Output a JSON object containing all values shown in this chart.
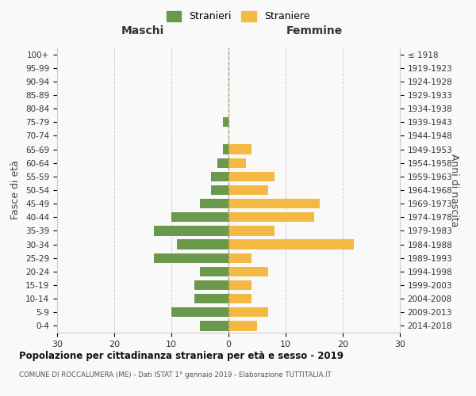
{
  "age_groups": [
    "0-4",
    "5-9",
    "10-14",
    "15-19",
    "20-24",
    "25-29",
    "30-34",
    "35-39",
    "40-44",
    "45-49",
    "50-54",
    "55-59",
    "60-64",
    "65-69",
    "70-74",
    "75-79",
    "80-84",
    "85-89",
    "90-94",
    "95-99",
    "100+"
  ],
  "birth_years": [
    "2014-2018",
    "2009-2013",
    "2004-2008",
    "1999-2003",
    "1994-1998",
    "1989-1993",
    "1984-1988",
    "1979-1983",
    "1974-1978",
    "1969-1973",
    "1964-1968",
    "1959-1963",
    "1954-1958",
    "1949-1953",
    "1944-1948",
    "1939-1943",
    "1934-1938",
    "1929-1933",
    "1924-1928",
    "1919-1923",
    "≤ 1918"
  ],
  "maschi": [
    5,
    10,
    6,
    6,
    5,
    13,
    9,
    13,
    10,
    5,
    3,
    3,
    2,
    1,
    0,
    1,
    0,
    0,
    0,
    0,
    0
  ],
  "femmine": [
    5,
    7,
    4,
    4,
    7,
    4,
    22,
    8,
    15,
    16,
    7,
    8,
    3,
    4,
    0,
    0,
    0,
    0,
    0,
    0,
    0
  ],
  "maschi_color": "#6a994e",
  "femmine_color": "#f4b942",
  "title": "Popolazione per cittadinanza straniera per età e sesso - 2019",
  "subtitle": "COMUNE DI ROCCALUMERA (ME) - Dati ISTAT 1° gennaio 2019 - Elaborazione TUTTITALIA.IT",
  "legend_maschi": "Stranieri",
  "legend_femmine": "Straniere",
  "header_left": "Maschi",
  "header_right": "Femmine",
  "ylabel_left": "Fasce di età",
  "ylabel_right": "Anni di nascita",
  "xlim": 30,
  "background_color": "#f9f9f9",
  "grid_color": "#cccccc"
}
